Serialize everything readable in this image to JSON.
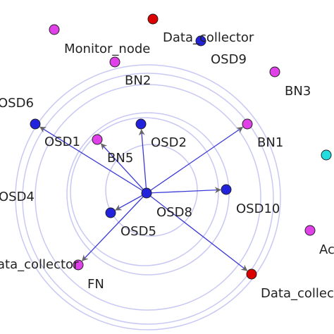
{
  "colors": {
    "edge": "#3a3ad6",
    "arrowhead": "#666666",
    "ring": "#c8c8f4",
    "osd": "#2222dd",
    "bn": "#e040e8",
    "data_collector": "#dd0000",
    "monitor": "#e040e8",
    "fn": "#e040e8",
    "other": "#22dde0"
  },
  "nodes": [
    {
      "id": "center",
      "label": "",
      "kind": "osd"
    },
    {
      "id": "monitor_node",
      "label": "Monitor_node",
      "kind": "monitor"
    },
    {
      "id": "data_collector_top",
      "label": "Data_collector",
      "kind": "data_collector"
    },
    {
      "id": "osd9",
      "label": "OSD9",
      "kind": "osd"
    },
    {
      "id": "bn2",
      "label": "BN2",
      "kind": "bn"
    },
    {
      "id": "bn3",
      "label": "BN3",
      "kind": "bn"
    },
    {
      "id": "osd6",
      "label": "OSD6",
      "kind": "osd"
    },
    {
      "id": "osd1",
      "label": "OSD1",
      "kind": "bn"
    },
    {
      "id": "osd2",
      "label": "OSD2",
      "kind": "osd"
    },
    {
      "id": "bn1",
      "label": "BN1",
      "kind": "bn"
    },
    {
      "id": "bn5",
      "label": "BN5",
      "kind": "bn"
    },
    {
      "id": "osd4",
      "label": "OSD4",
      "kind": "none"
    },
    {
      "id": "osd10",
      "label": "OSD10",
      "kind": "osd"
    },
    {
      "id": "osd8",
      "label": "OSD8",
      "kind": "none"
    },
    {
      "id": "osd5",
      "label": "OSD5",
      "kind": "osd"
    },
    {
      "id": "data_collector_left",
      "label": "ata_collector",
      "kind": "fn"
    },
    {
      "id": "fn",
      "label": "FN",
      "kind": "none"
    },
    {
      "id": "data_collector_bottom",
      "label": "Data_collec",
      "kind": "data_collector"
    },
    {
      "id": "ac",
      "label": "Ac",
      "kind": "bn"
    },
    {
      "id": "cyan_node",
      "label": "",
      "kind": "other"
    }
  ],
  "edges": [
    {
      "from": "center",
      "to": "osd6"
    },
    {
      "from": "center",
      "to": "osd1"
    },
    {
      "from": "center",
      "to": "osd2"
    },
    {
      "from": "center",
      "to": "bn1"
    },
    {
      "from": "center",
      "to": "osd10"
    },
    {
      "from": "center",
      "to": "osd5"
    },
    {
      "from": "center",
      "to": "data_collector_left"
    },
    {
      "from": "center",
      "to": "data_collector_bottom"
    }
  ]
}
